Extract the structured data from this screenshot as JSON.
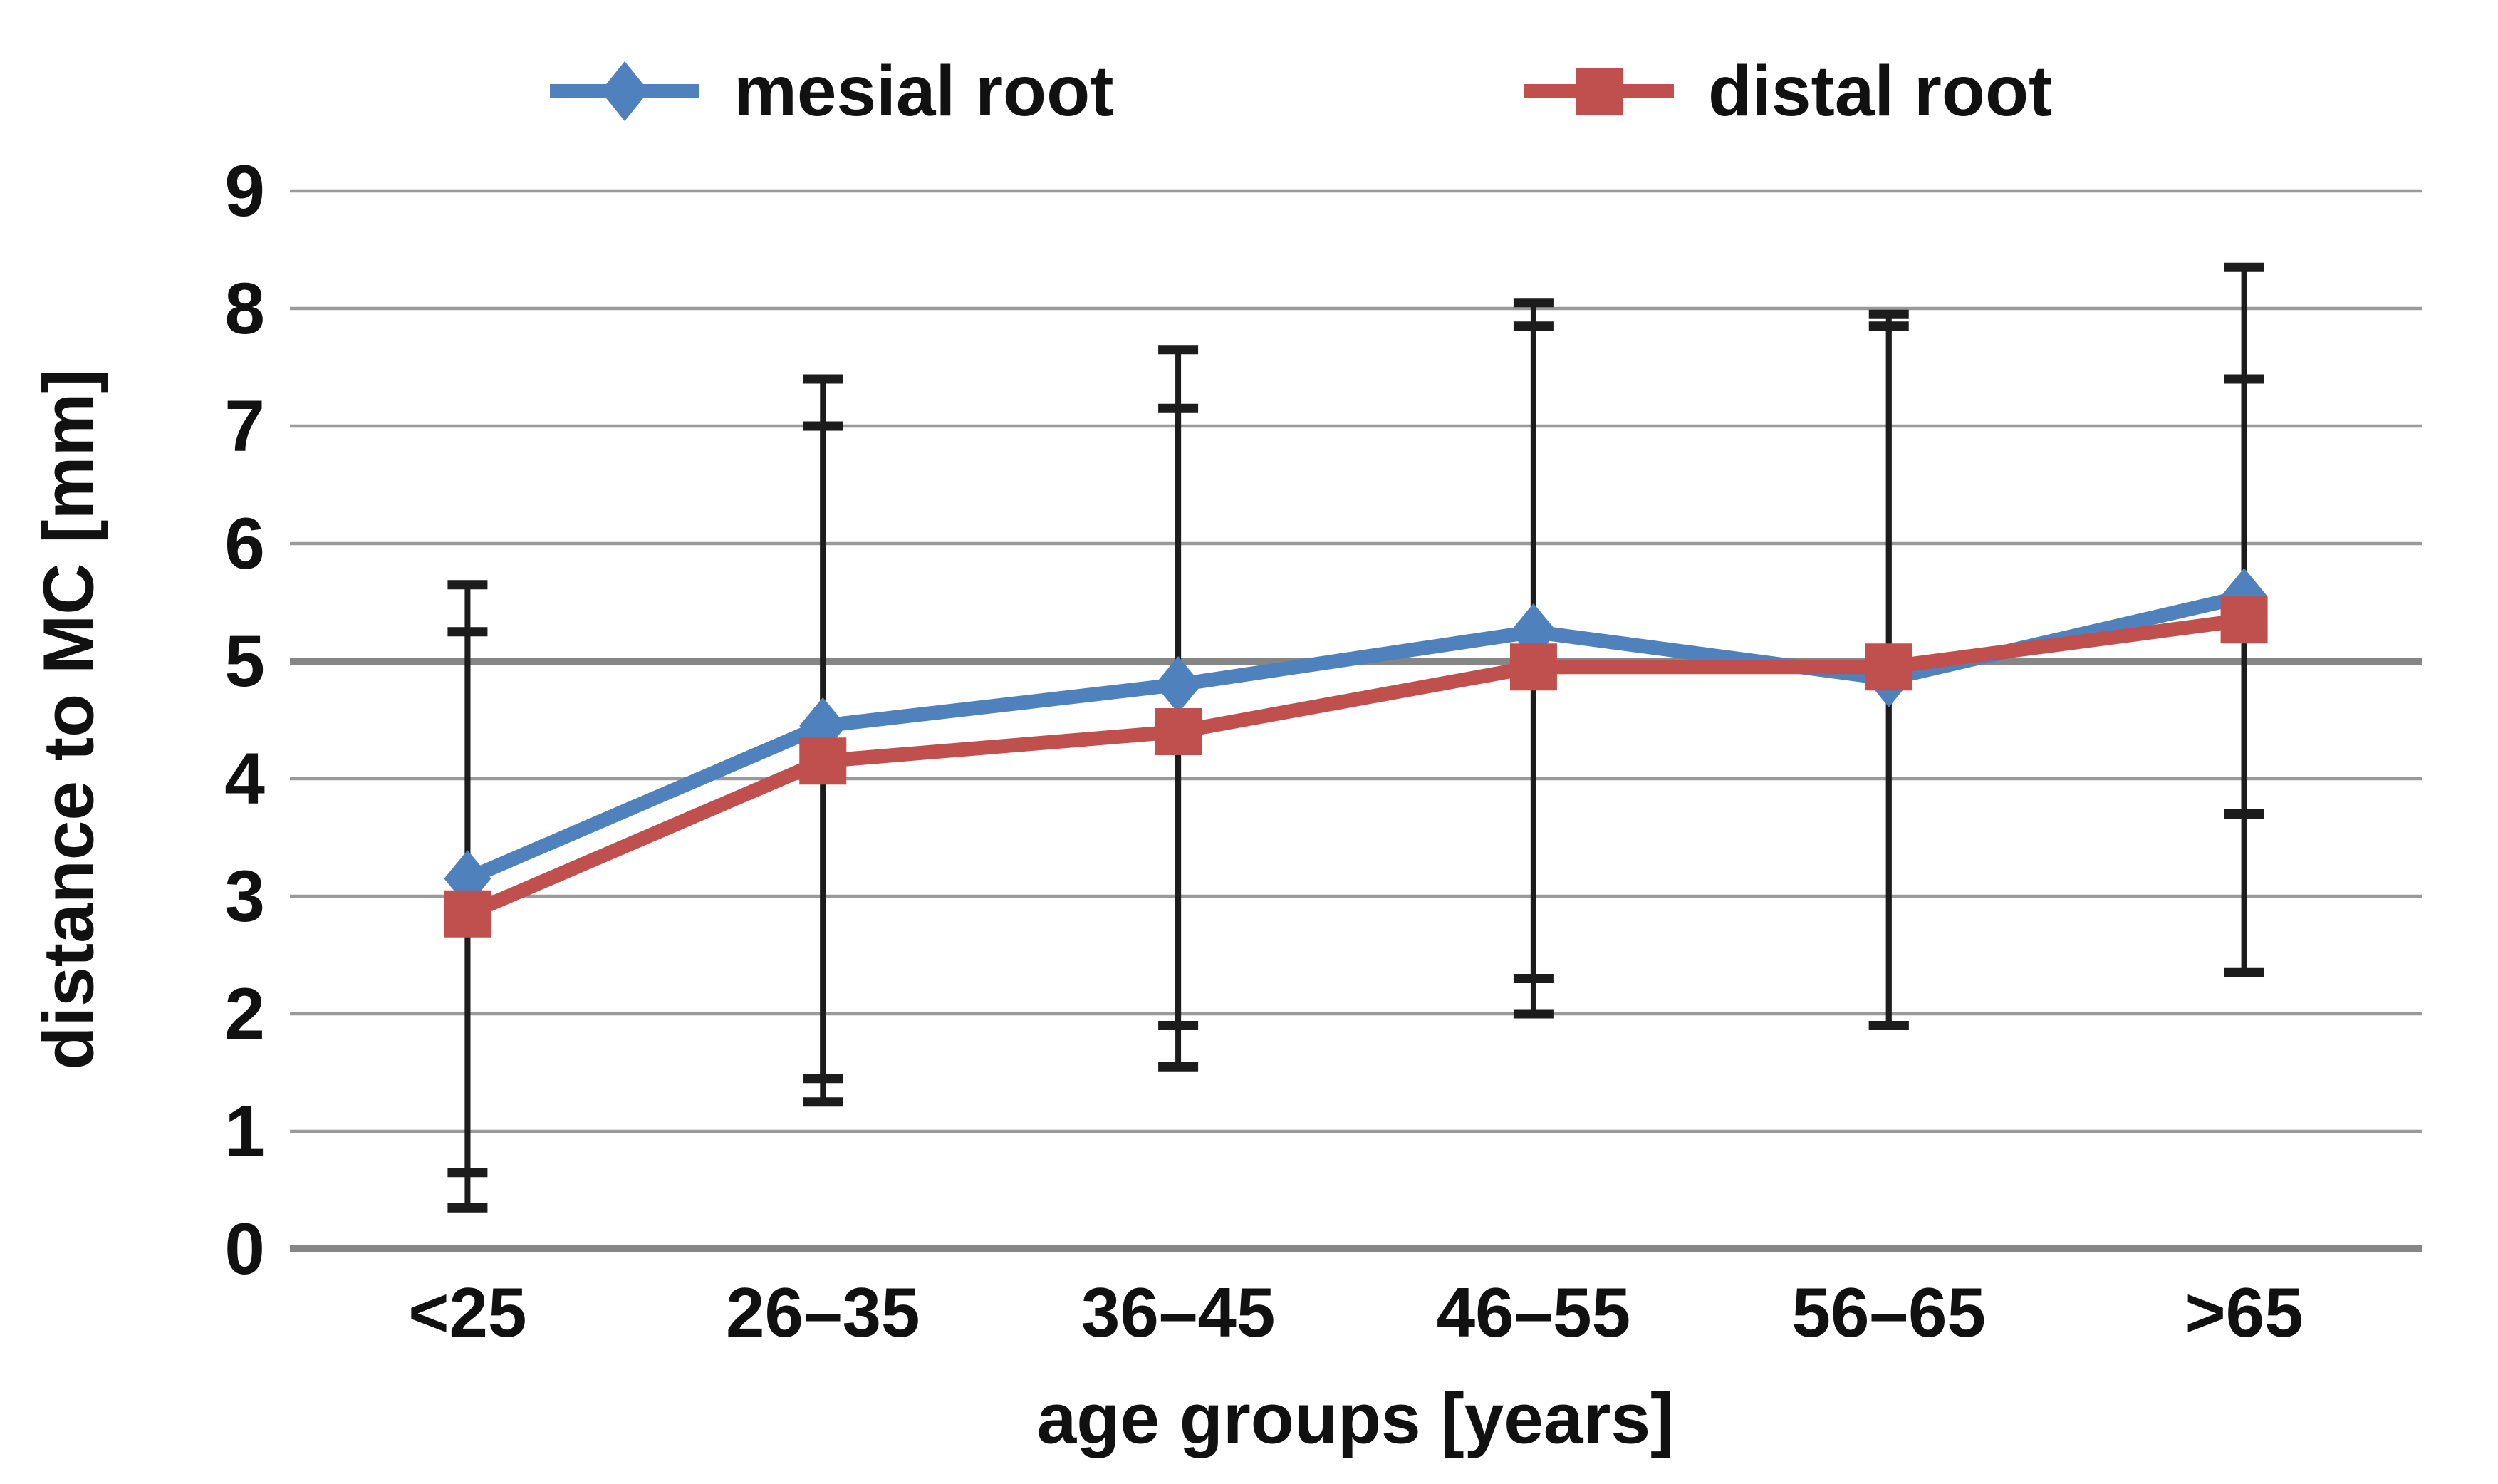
{
  "page": {
    "background": "#ffffff"
  },
  "legend": {
    "position": "top",
    "items": [
      {
        "label": "mesial root",
        "color": "#4f81bd",
        "marker": "diamond"
      },
      {
        "label": "distal root",
        "color": "#c0504d",
        "marker": "square"
      }
    ]
  },
  "chart_data": {
    "type": "line",
    "title": "",
    "xlabel": "age groups [years]",
    "ylabel": "distance to MC [mm]",
    "categories": [
      "<25",
      "26–35",
      "36–45",
      "46–55",
      "56–65",
      ">65"
    ],
    "ylim": [
      0,
      9
    ],
    "yticks": [
      0,
      1,
      2,
      3,
      4,
      5,
      6,
      7,
      8,
      9
    ],
    "grid": true,
    "emphasized_gridlines": [
      0,
      5
    ],
    "legend_position": "top",
    "error_bars": true,
    "series": [
      {
        "name": "mesial root",
        "color": "#4f81bd",
        "marker": "diamond",
        "values": [
          3.15,
          4.45,
          4.8,
          5.25,
          4.85,
          5.55
        ],
        "error_low": [
          0.65,
          1.45,
          1.9,
          2.3,
          1.9,
          3.7
        ],
        "error_high": [
          5.65,
          7.4,
          7.65,
          8.05,
          7.95,
          7.4
        ]
      },
      {
        "name": "distal root",
        "color": "#c0504d",
        "marker": "square",
        "values": [
          2.85,
          4.15,
          4.4,
          4.95,
          4.95,
          5.35
        ],
        "error_low": [
          0.35,
          1.25,
          1.55,
          2.0,
          1.9,
          2.35
        ],
        "error_high": [
          5.25,
          7.0,
          7.15,
          7.85,
          7.85,
          8.35
        ]
      }
    ],
    "colors": {
      "gridline": "#9a9a9a",
      "gridline_emphasis": "#868686",
      "error_bar": "#1c1c1c",
      "text": "#111111"
    }
  }
}
